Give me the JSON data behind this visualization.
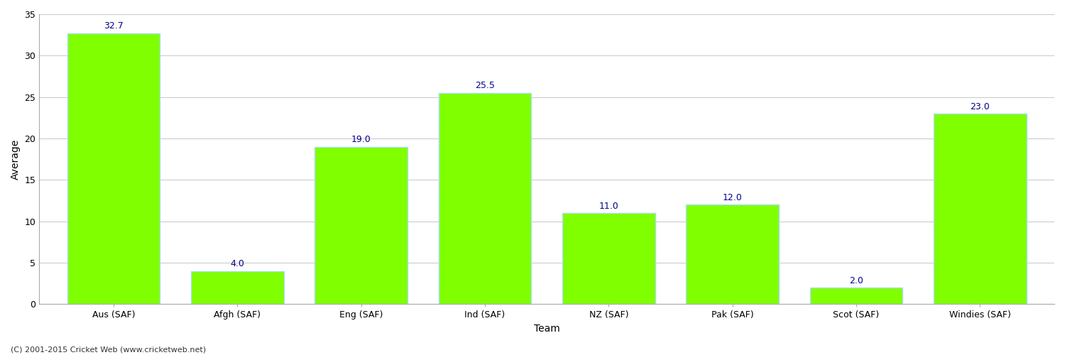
{
  "categories": [
    "Aus (SAF)",
    "Afgh (SAF)",
    "Eng (SAF)",
    "Ind (SAF)",
    "NZ (SAF)",
    "Pak (SAF)",
    "Scot (SAF)",
    "Windies (SAF)"
  ],
  "values": [
    32.7,
    4.0,
    19.0,
    25.5,
    11.0,
    12.0,
    2.0,
    23.0
  ],
  "bar_color": "#7FFF00",
  "bar_edge_color": "#aaddff",
  "label_color": "#00008B",
  "xlabel": "Team",
  "ylabel": "Average",
  "ylim": [
    0,
    35
  ],
  "yticks": [
    0,
    5,
    10,
    15,
    20,
    25,
    30,
    35
  ],
  "grid_color": "#cccccc",
  "background_color": "#ffffff",
  "annotation_fontsize": 9,
  "axis_label_fontsize": 10,
  "tick_fontsize": 9,
  "footer_text": "(C) 2001-2015 Cricket Web (www.cricketweb.net)",
  "footer_fontsize": 8,
  "footer_color": "#333333"
}
